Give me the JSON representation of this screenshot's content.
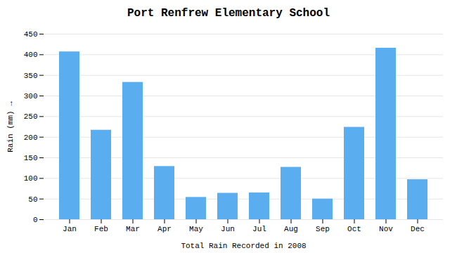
{
  "chart_data": {
    "type": "bar",
    "title": "Port Renfrew Elementary School",
    "xlabel": "Total Rain Recorded in 2008",
    "ylabel": "Rain (mm)",
    "categories": [
      "Jan",
      "Feb",
      "Mar",
      "Apr",
      "May",
      "Jun",
      "Jul",
      "Aug",
      "Sep",
      "Oct",
      "Nov",
      "Dec"
    ],
    "values": [
      407,
      217,
      333,
      129,
      54,
      64,
      65,
      127,
      50,
      224,
      416,
      97
    ],
    "color": "#5aaef0",
    "ylim": [
      0,
      450
    ],
    "yticks": [
      0,
      50,
      100,
      150,
      200,
      250,
      300,
      350,
      400,
      450
    ],
    "grid": true
  }
}
